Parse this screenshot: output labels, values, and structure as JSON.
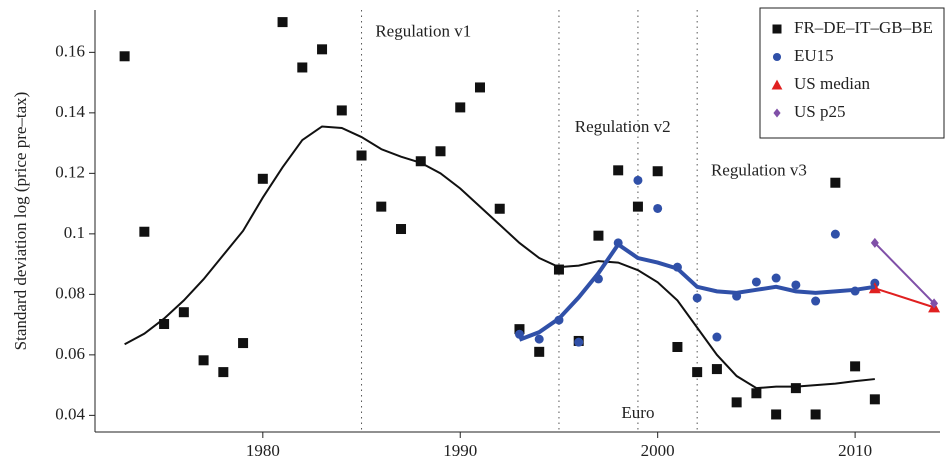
{
  "chart_data": {
    "type": "scatter",
    "y_label": "Standard deviation log (price pre–tax)",
    "xlim": [
      1971.5,
      2014.3
    ],
    "ylim": [
      0.0345,
      0.174
    ],
    "xticks": [
      1980,
      1990,
      2000,
      2010
    ],
    "yticks": [
      0.04,
      0.06,
      0.08,
      0.1,
      0.12,
      0.14,
      0.16
    ],
    "legend": "top-right",
    "series": [
      {
        "name": "FR–DE–IT–GB–BE",
        "color": "#111111",
        "marker": "square",
        "x": [
          1973,
          1974,
          1975,
          1976,
          1977,
          1978,
          1979,
          1980,
          1981,
          1982,
          1983,
          1984,
          1985,
          1986,
          1987,
          1988,
          1989,
          1990,
          1991,
          1992,
          1993,
          1994,
          1995,
          1996,
          1997,
          1998,
          1999,
          2000,
          2001,
          2002,
          2003,
          2004,
          2005,
          2006,
          2007,
          2008,
          2009,
          2010,
          2011
        ],
        "values": [
          0.1587,
          0.1007,
          0.0702,
          0.0741,
          0.0582,
          0.0543,
          0.0639,
          0.1182,
          0.17,
          0.155,
          0.161,
          0.1408,
          0.1259,
          0.109,
          0.1016,
          0.124,
          0.1273,
          0.1418,
          0.1484,
          0.1083,
          0.0685,
          0.061,
          0.0882,
          0.0646,
          0.0994,
          0.121,
          0.109,
          0.1207,
          0.0626,
          0.0543,
          0.0553,
          0.0443,
          0.0473,
          0.0403,
          0.049,
          0.0403,
          0.1169,
          0.0562,
          0.0453
        ]
      },
      {
        "name": "EU15",
        "color": "#3050a8",
        "marker": "circle",
        "x": [
          1993,
          1994,
          1995,
          1996,
          1997,
          1998,
          1999,
          2000,
          2001,
          2002,
          2003,
          2004,
          2005,
          2006,
          2007,
          2008,
          2009,
          2010,
          2011
        ],
        "values": [
          0.0668,
          0.0652,
          0.0715,
          0.0642,
          0.0851,
          0.097,
          0.1177,
          0.1084,
          0.089,
          0.0788,
          0.0659,
          0.0794,
          0.0841,
          0.0854,
          0.0831,
          0.0778,
          0.0999,
          0.0811,
          0.0837
        ]
      },
      {
        "name": "US median",
        "color": "#e02020",
        "marker": "triangle",
        "line": true,
        "x": [
          2011,
          2014
        ],
        "values": [
          0.082,
          0.0757
        ]
      },
      {
        "name": "US p25",
        "color": "#8050a8",
        "marker": "diamond",
        "line": true,
        "x": [
          2011,
          2014
        ],
        "values": [
          0.097,
          0.077
        ]
      },
      {
        "color": "#111111",
        "marker": "none",
        "line": true,
        "width": 2,
        "x": [
          1973,
          1974,
          1975,
          1976,
          1977,
          1978,
          1979,
          1980,
          1981,
          1982,
          1983,
          1984,
          1985,
          1986,
          1987,
          1988,
          1989,
          1990,
          1991,
          1992,
          1993,
          1994,
          1995,
          1996,
          1997,
          1998,
          1999,
          2000,
          2001,
          2002,
          2003,
          2004,
          2005,
          2006,
          2007,
          2008,
          2009,
          2010,
          2011
        ],
        "values": [
          0.0635,
          0.067,
          0.072,
          0.078,
          0.085,
          0.093,
          0.101,
          0.112,
          0.122,
          0.131,
          0.1355,
          0.135,
          0.132,
          0.128,
          0.1255,
          0.1235,
          0.12,
          0.115,
          0.109,
          0.103,
          0.097,
          0.092,
          0.089,
          0.0895,
          0.091,
          0.0905,
          0.088,
          0.084,
          0.078,
          0.069,
          0.06,
          0.053,
          0.049,
          0.0495,
          0.0495,
          0.05,
          0.0505,
          0.0513,
          0.052
        ]
      },
      {
        "color": "#3050a8",
        "marker": "none",
        "line": true,
        "width": 4,
        "x": [
          1993,
          1994,
          1995,
          1996,
          1997,
          1998,
          1999,
          2000,
          2001,
          2002,
          2003,
          2004,
          2005,
          2006,
          2007,
          2008,
          2009,
          2010,
          2011
        ],
        "values": [
          0.065,
          0.0675,
          0.072,
          0.079,
          0.087,
          0.0965,
          0.092,
          0.0905,
          0.0885,
          0.0825,
          0.081,
          0.0805,
          0.0815,
          0.0825,
          0.081,
          0.0805,
          0.081,
          0.0815,
          0.0825
        ]
      }
    ],
    "vlines": [
      1985,
      1995,
      1999,
      2002
    ],
    "annotations": [
      {
        "text": "Regulation v1",
        "x": 1985.7,
        "y": 0.1665
      },
      {
        "text": "Regulation v2",
        "x": 1995.8,
        "y": 0.135
      },
      {
        "text": "Regulation v3",
        "x": 2002.7,
        "y": 0.1205
      },
      {
        "text": "Euro",
        "x": 1999,
        "y": 0.0405
      }
    ]
  }
}
